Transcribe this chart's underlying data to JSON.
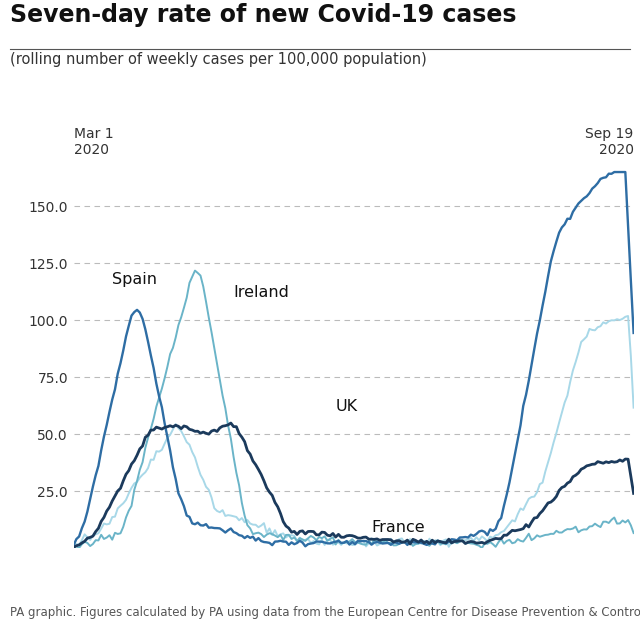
{
  "title": "Seven-day rate of new Covid-19 cases",
  "subtitle": "(rolling number of weekly cases per 100,000 population)",
  "footnote": "PA graphic. Figures calculated by PA using data from the European Centre for Disease Prevention & Control",
  "x_start_label": "Mar 1\n2020",
  "x_end_label": "Sep 19\n2020",
  "ylim": [
    0,
    170
  ],
  "yticks": [
    25.0,
    50.0,
    75.0,
    100.0,
    125.0,
    150.0
  ],
  "n_points": 204,
  "colors": {
    "spain": "#2e6da4",
    "uk": "#1b3a5c",
    "ireland": "#6ab4c8",
    "france": "#a8d8e8"
  },
  "labels": {
    "spain": "Spain",
    "uk": "UK",
    "ireland": "Ireland",
    "france": "France"
  },
  "background_color": "#ffffff",
  "grid_color": "#bbbbbb",
  "title_fontsize": 17,
  "subtitle_fontsize": 10.5,
  "footnote_fontsize": 8.5,
  "label_fontsize": 11.5,
  "tick_fontsize": 10
}
